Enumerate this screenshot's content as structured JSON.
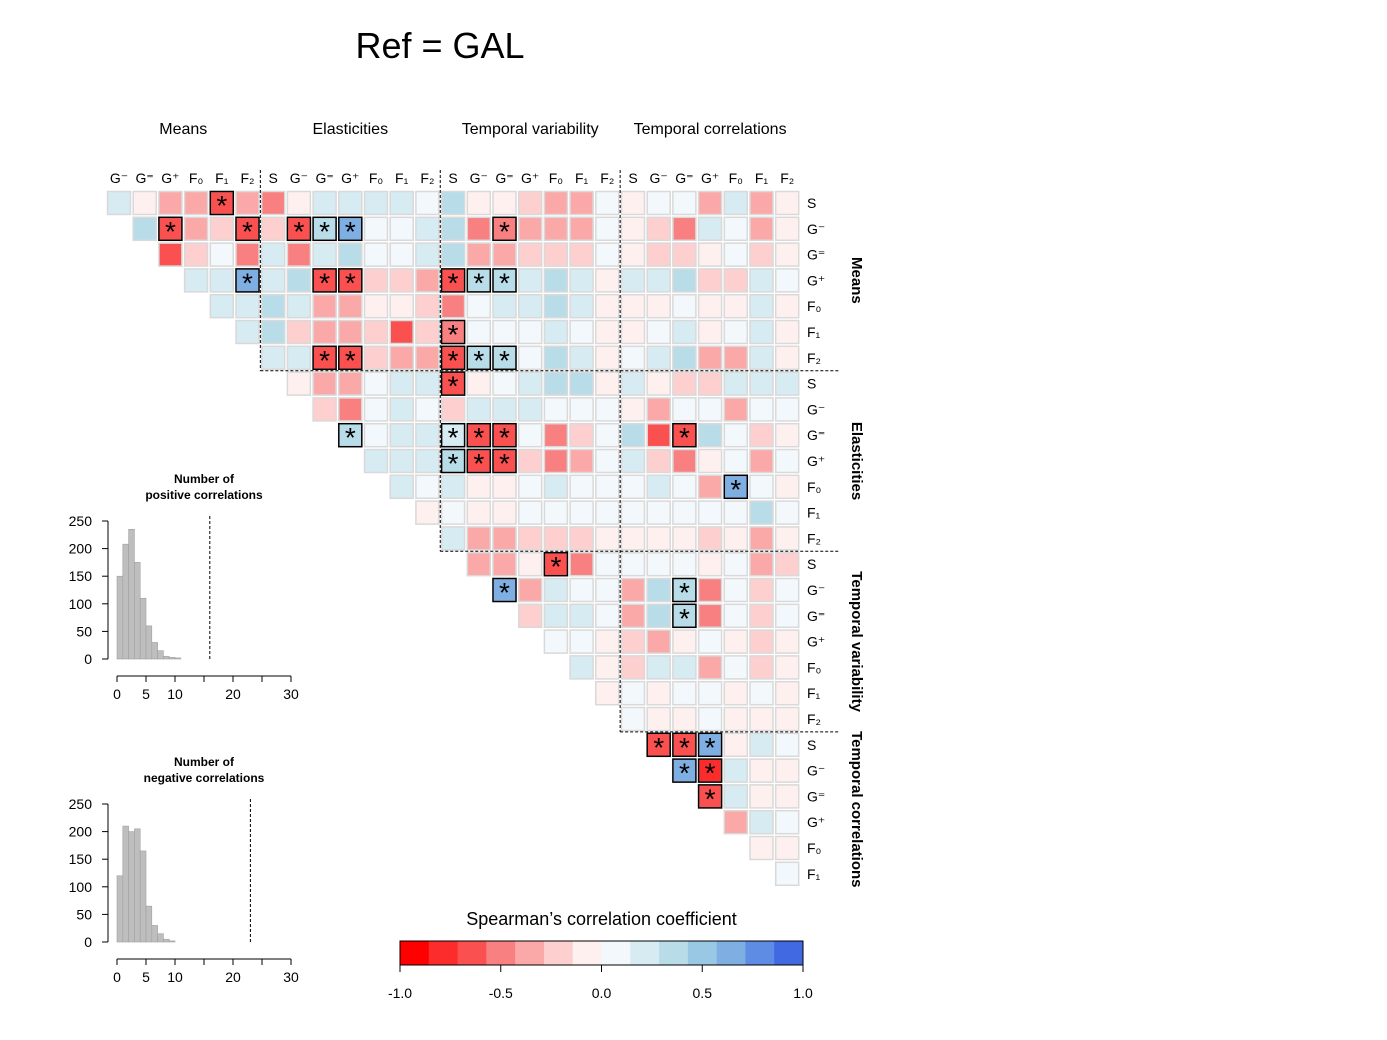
{
  "title": "Ref = GAL",
  "chart_data": [
    {
      "type": "heatmap",
      "column_labels": [
        "G⁻",
        "G⁼",
        "G⁺",
        "F₀",
        "F₁",
        "F₂",
        "S",
        "G⁻",
        "G⁼",
        "G⁺",
        "F₀",
        "F₁",
        "F₂",
        "S",
        "G⁻",
        "G⁼",
        "G⁺",
        "F₀",
        "F₁",
        "F₂",
        "S",
        "G⁻",
        "G⁼",
        "G⁺",
        "F₀",
        "F₁",
        "F₂"
      ],
      "row_labels": [
        "S",
        "G⁻",
        "G⁼",
        "G⁺",
        "F₀",
        "F₁",
        "F₂",
        "S",
        "G⁻",
        "G⁼",
        "G⁺",
        "F₀",
        "F₁",
        "F₂",
        "S",
        "G⁻",
        "G⁼",
        "G⁺",
        "F₀",
        "F₁",
        "F₂",
        "S",
        "G⁻",
        "G⁼",
        "G⁺",
        "F₀",
        "F₁"
      ],
      "column_groups": [
        {
          "label": "Means",
          "span": 6
        },
        {
          "label": "Elasticities",
          "span": 7
        },
        {
          "label": "Temporal variability",
          "span": 7
        },
        {
          "label": "Temporal correlations",
          "span": 7
        }
      ],
      "row_groups": [
        {
          "label": "Means",
          "span": 7
        },
        {
          "label": "Elasticities",
          "span": 7
        },
        {
          "label": "Temporal variability",
          "span": 7
        },
        {
          "label": "Temporal correlations",
          "span": 6
        }
      ],
      "values": [
        [
          0.2,
          -0.1,
          -0.3,
          -0.3,
          -0.6,
          -0.3,
          -0.5,
          -0.1,
          0.15,
          0.2,
          0.15,
          0.2,
          0.05,
          0.3,
          -0.1,
          -0.1,
          -0.2,
          -0.4,
          -0.3,
          0.05,
          -0.1,
          0.1,
          0.1,
          -0.3,
          0.15,
          -0.3,
          -0.1
        ],
        [
          0.4,
          -0.7,
          -0.3,
          -0.2,
          -0.6,
          -0.2,
          -0.6,
          0.4,
          0.6,
          0.05,
          0.05,
          0.15,
          0.3,
          -0.5,
          -0.5,
          -0.4,
          -0.3,
          -0.3,
          0.05,
          -0.1,
          -0.2,
          -0.5,
          0.15,
          0.1,
          -0.4,
          -0.1
        ],
        [
          -0.7,
          -0.2,
          0.05,
          -0.5,
          0.15,
          -0.5,
          0.2,
          0.4,
          0.05,
          0.1,
          0.15,
          0.3,
          -0.3,
          -0.3,
          -0.2,
          -0.2,
          -0.2,
          0.05,
          -0.1,
          -0.2,
          -0.2,
          -0.1,
          0.1,
          -0.2,
          -0.1
        ],
        [
          0.2,
          0.15,
          0.6,
          0.2,
          0.4,
          -0.6,
          -0.7,
          -0.2,
          -0.2,
          -0.3,
          -0.6,
          0.4,
          0.3,
          0.15,
          0.3,
          0.2,
          -0.1,
          0.15,
          0.15,
          0.3,
          -0.2,
          -0.2,
          0.2,
          0.05
        ],
        [
          0.15,
          0.2,
          0.3,
          0.15,
          -0.3,
          -0.3,
          -0.1,
          -0.1,
          -0.2,
          -0.5,
          0.05,
          0.15,
          0.15,
          0.3,
          0.15,
          -0.1,
          -0.1,
          -0.1,
          0.05,
          -0.1,
          -0.1,
          0.2,
          -0.1
        ],
        [
          0.2,
          0.3,
          -0.2,
          -0.4,
          -0.4,
          -0.2,
          -0.6,
          -0.2,
          -0.5,
          0.1,
          0.1,
          0.05,
          0.2,
          0.05,
          -0.1,
          -0.1,
          0.05,
          0.15,
          -0.05,
          0.1,
          0.15,
          -0.05
        ],
        [
          0.2,
          0.15,
          -0.6,
          -0.7,
          -0.2,
          -0.3,
          -0.4,
          -0.6,
          0.4,
          0.3,
          0.1,
          0.3,
          0.2,
          -0.1,
          0.1,
          0.15,
          0.3,
          -0.3,
          -0.3,
          0.2,
          -0.1
        ],
        [
          -0.1,
          -0.4,
          -0.4,
          0.05,
          0.15,
          0.15,
          -0.7,
          -0.05,
          0.05,
          0.15,
          0.3,
          0.3,
          -0.05,
          0.2,
          -0.1,
          -0.2,
          -0.2,
          0.15,
          0.2,
          0.15
        ],
        [
          -0.2,
          -0.5,
          0.05,
          0.15,
          0.1,
          -0.2,
          0.15,
          0.2,
          0.2,
          0.05,
          0.05,
          0.05,
          -0.1,
          -0.3,
          0.05,
          0.1,
          -0.4,
          0.05,
          0.05
        ],
        [
          0.4,
          0.05,
          0.2,
          0.2,
          0.2,
          -0.7,
          -0.6,
          0.05,
          -0.5,
          -0.2,
          0.05,
          0.3,
          -0.6,
          -0.7,
          0.3,
          0.05,
          -0.2,
          -0.1
        ],
        [
          0.15,
          0.2,
          0.2,
          0.4,
          -0.6,
          -0.6,
          -0.2,
          -0.5,
          -0.3,
          0.05,
          0.15,
          -0.2,
          -0.5,
          -0.1,
          0.05,
          -0.4,
          0.05
        ],
        [
          0.15,
          0.1,
          0.15,
          -0.1,
          -0.1,
          0.05,
          0.15,
          0.1,
          0.05,
          0.1,
          0.15,
          0.05,
          -0.3,
          0.6,
          0.05,
          -0.1
        ],
        [
          -0.1,
          0.1,
          -0.1,
          -0.1,
          0.05,
          0.1,
          0.05,
          0.05,
          0.1,
          0.1,
          0.05,
          0.05,
          0.05,
          0.3,
          0.05
        ],
        [
          0.15,
          -0.3,
          -0.4,
          -0.2,
          -0.2,
          -0.2,
          -0.1,
          -0.1,
          -0.1,
          -0.1,
          -0.2,
          -0.1,
          -0.3,
          -0.1
        ],
        [
          -0.4,
          -0.4,
          -0.1,
          -0.6,
          -0.5,
          0.05,
          0.05,
          0.05,
          0.05,
          -0.1,
          0.1,
          -0.4,
          -0.2
        ],
        [
          0.7,
          -0.4,
          0.2,
          0.05,
          0.05,
          -0.4,
          0.3,
          0.3,
          -0.5,
          0.05,
          -0.2,
          0.05
        ],
        [
          -0.2,
          0.15,
          0.15,
          0.05,
          -0.3,
          0.3,
          0.3,
          -0.5,
          0.05,
          -0.2,
          0.05
        ],
        [
          0.05,
          0.05,
          -0.1,
          -0.2,
          -0.3,
          -0.1,
          0.1,
          -0.1,
          -0.2,
          -0.1
        ],
        [
          0.2,
          -0.1,
          -0.2,
          0.2,
          0.2,
          -0.3,
          0.05,
          -0.2,
          -0.1
        ],
        [
          -0.1,
          0.1,
          -0.1,
          0.05,
          0.05,
          -0.1,
          0.1,
          -0.1
        ],
        [
          0.05,
          -0.1,
          -0.1,
          0.05,
          -0.1,
          -0.1,
          -0.1
        ],
        [
          -0.7,
          -0.7,
          0.6,
          -0.1,
          0.15,
          0.05
        ],
        [
          0.7,
          -0.8,
          0.15,
          -0.1,
          -0.1
        ],
        [
          -0.7,
          0.15,
          -0.1,
          -0.05
        ],
        [
          -0.3,
          0.15,
          0.05
        ],
        [
          -0.1,
          -0.1
        ],
        [
          0.05
        ]
      ],
      "significant": [
        [
          4
        ],
        [
          1,
          4,
          6,
          7,
          8,
          14
        ],
        [],
        [
          2,
          5,
          6,
          10,
          11,
          12
        ],
        [],
        [
          8
        ],
        [
          2,
          3,
          7,
          8,
          9
        ],
        [
          6
        ],
        [],
        [
          0,
          4,
          5,
          6,
          13
        ],
        [
          3,
          4,
          5
        ],
        [
          13
        ],
        [],
        [],
        [
          3
        ],
        [
          0,
          7
        ],
        [
          6
        ],
        [],
        [],
        [],
        [],
        [
          0,
          1,
          2
        ],
        [
          0,
          1
        ],
        [
          0
        ],
        [],
        [],
        []
      ],
      "significance_symbol": "*",
      "colorbar_title": "Spearman’s correlation coefficient",
      "clim": [
        -1,
        1
      ],
      "colors": [
        "#ff0000",
        "#fd2c2c",
        "#fb5050",
        "#f98080",
        "#fba8a8",
        "#fdcfcf",
        "#fff0f0",
        "#f2f8fb",
        "#d6ebf2",
        "#b8dde9",
        "#99c8e4",
        "#7eaee2",
        "#5e8ce4",
        "#4169e1"
      ],
      "colorbar_ticks": [
        {
          "value": -1,
          "label": "-1.0"
        },
        -0.5,
        {
          "value": 0,
          "label": "0.0"
        },
        0.5,
        {
          "value": 1,
          "label": "1.0"
        }
      ]
    },
    {
      "type": "histogram",
      "title": [
        "Number of",
        "positive correlations"
      ],
      "bins": [
        0,
        1,
        2,
        3,
        4,
        5,
        6,
        7,
        8,
        9,
        10,
        11
      ],
      "counts": [
        150,
        208,
        235,
        175,
        110,
        60,
        30,
        15,
        5,
        3,
        2
      ],
      "color": "#bebebe",
      "observed": 16,
      "xlim": [
        0,
        30
      ],
      "xticks": [
        0,
        5,
        10,
        20,
        30
      ],
      "xticks_unlabeled": [
        15,
        25
      ],
      "ylim": [
        0,
        250
      ],
      "yticks": [
        0,
        50,
        100,
        150,
        200,
        250
      ]
    },
    {
      "type": "histogram",
      "title": [
        "Number of",
        "negative correlations"
      ],
      "bins": [
        0,
        1,
        2,
        3,
        4,
        5,
        6,
        7,
        8,
        9,
        10
      ],
      "counts": [
        120,
        210,
        200,
        205,
        165,
        65,
        30,
        15,
        5,
        2
      ],
      "color": "#bebebe",
      "observed": 23,
      "xlim": [
        0,
        30
      ],
      "xticks": [
        0,
        5,
        10,
        20,
        30
      ],
      "xticks_unlabeled": [
        15,
        25
      ],
      "ylim": [
        0,
        250
      ],
      "yticks": [
        0,
        50,
        100,
        150,
        200,
        250
      ]
    }
  ]
}
